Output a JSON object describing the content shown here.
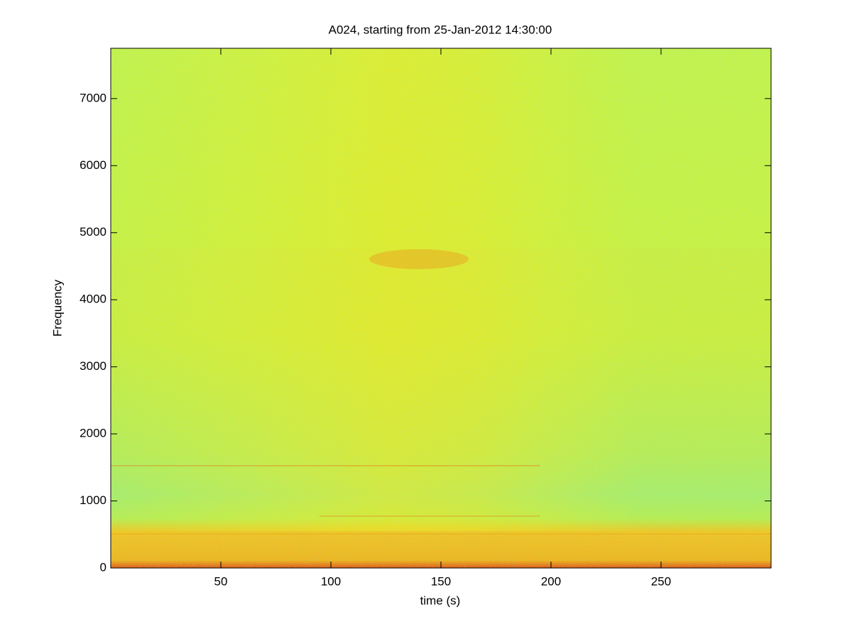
{
  "chart_data": {
    "type": "spectrogram",
    "title": "A024, starting from 25-Jan-2012 14:30:00",
    "xlabel": "time (s)",
    "ylabel": "Frequency",
    "xlim": [
      0,
      300
    ],
    "xticks": [
      50,
      100,
      150,
      200,
      250
    ],
    "ylim": [
      0,
      7750
    ],
    "yticks": [
      0,
      1000,
      2000,
      3000,
      4000,
      5000,
      6000,
      7000
    ]
  }
}
